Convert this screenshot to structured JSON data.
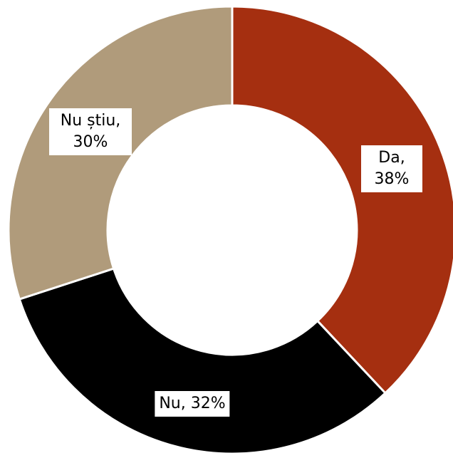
{
  "chart_data": {
    "type": "donut",
    "values": [
      38,
      32,
      30
    ],
    "value_labels": [
      "Da, 38%",
      "Nu, 32%",
      "Nu știu, 30%"
    ],
    "colors": [
      "#a52f10",
      "#000000",
      "#b09b7b"
    ]
  }
}
